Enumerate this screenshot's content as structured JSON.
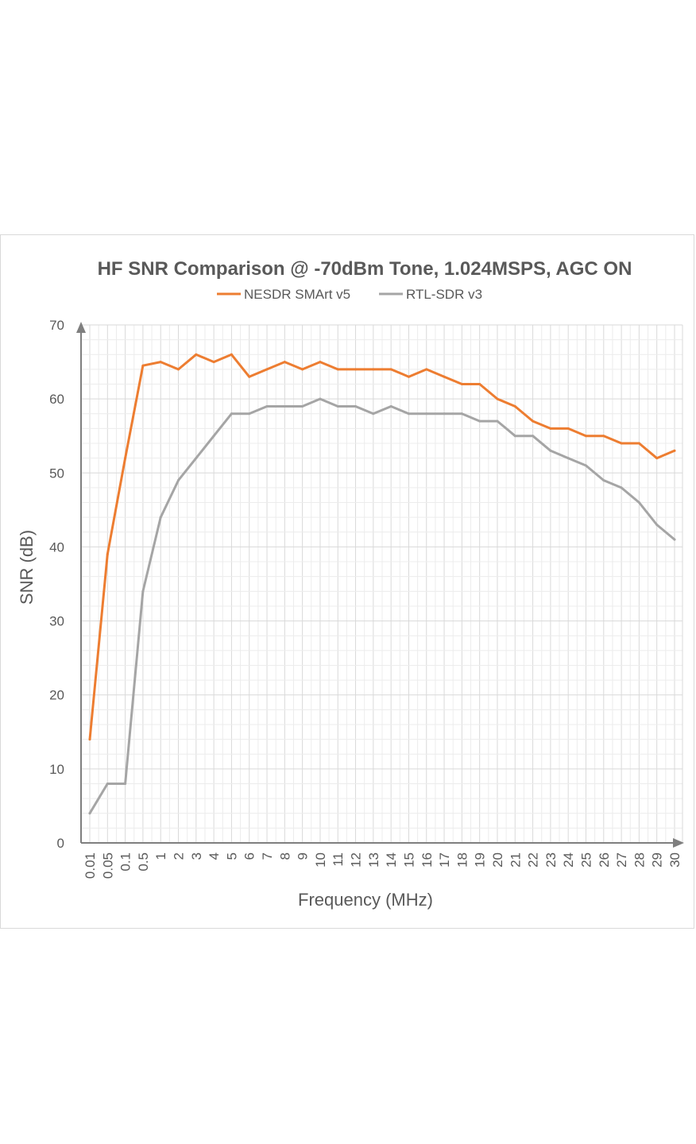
{
  "chart_data": {
    "type": "line",
    "title": "HF SNR Comparison @ -70dBm Tone, 1.024MSPS, AGC ON",
    "xlabel": "Frequency (MHz)",
    "ylabel": "SNR (dB)",
    "ylim": [
      0,
      70
    ],
    "yticks": [
      "0",
      "10",
      "20",
      "30",
      "40",
      "50",
      "60",
      "70"
    ],
    "categories": [
      "0.01",
      "0.05",
      "0.1",
      "0.5",
      "1",
      "2",
      "3",
      "4",
      "5",
      "6",
      "7",
      "8",
      "9",
      "10",
      "11",
      "12",
      "13",
      "14",
      "15",
      "16",
      "17",
      "18",
      "19",
      "20",
      "21",
      "22",
      "23",
      "24",
      "25",
      "26",
      "27",
      "28",
      "29",
      "30"
    ],
    "grid": true,
    "legend_position": "top",
    "series": [
      {
        "name": "NESDR SMArt v5",
        "color": "#ed7d31",
        "values": [
          14,
          39,
          52,
          64.5,
          65,
          64,
          66,
          65,
          66,
          63,
          64,
          65,
          64,
          65,
          64,
          64,
          64,
          64,
          63,
          64,
          63,
          62,
          62,
          60,
          59,
          57,
          56,
          56,
          55,
          55,
          54,
          54,
          52,
          53
        ]
      },
      {
        "name": "RTL-SDR v3",
        "color": "#a5a5a5",
        "values": [
          4,
          8,
          8,
          34,
          44,
          49,
          52,
          55,
          58,
          58,
          59,
          59,
          59,
          60,
          59,
          59,
          58,
          59,
          58,
          58,
          58,
          58,
          57,
          57,
          55,
          55,
          53,
          52,
          51,
          49,
          48,
          46,
          43,
          41
        ]
      }
    ]
  }
}
